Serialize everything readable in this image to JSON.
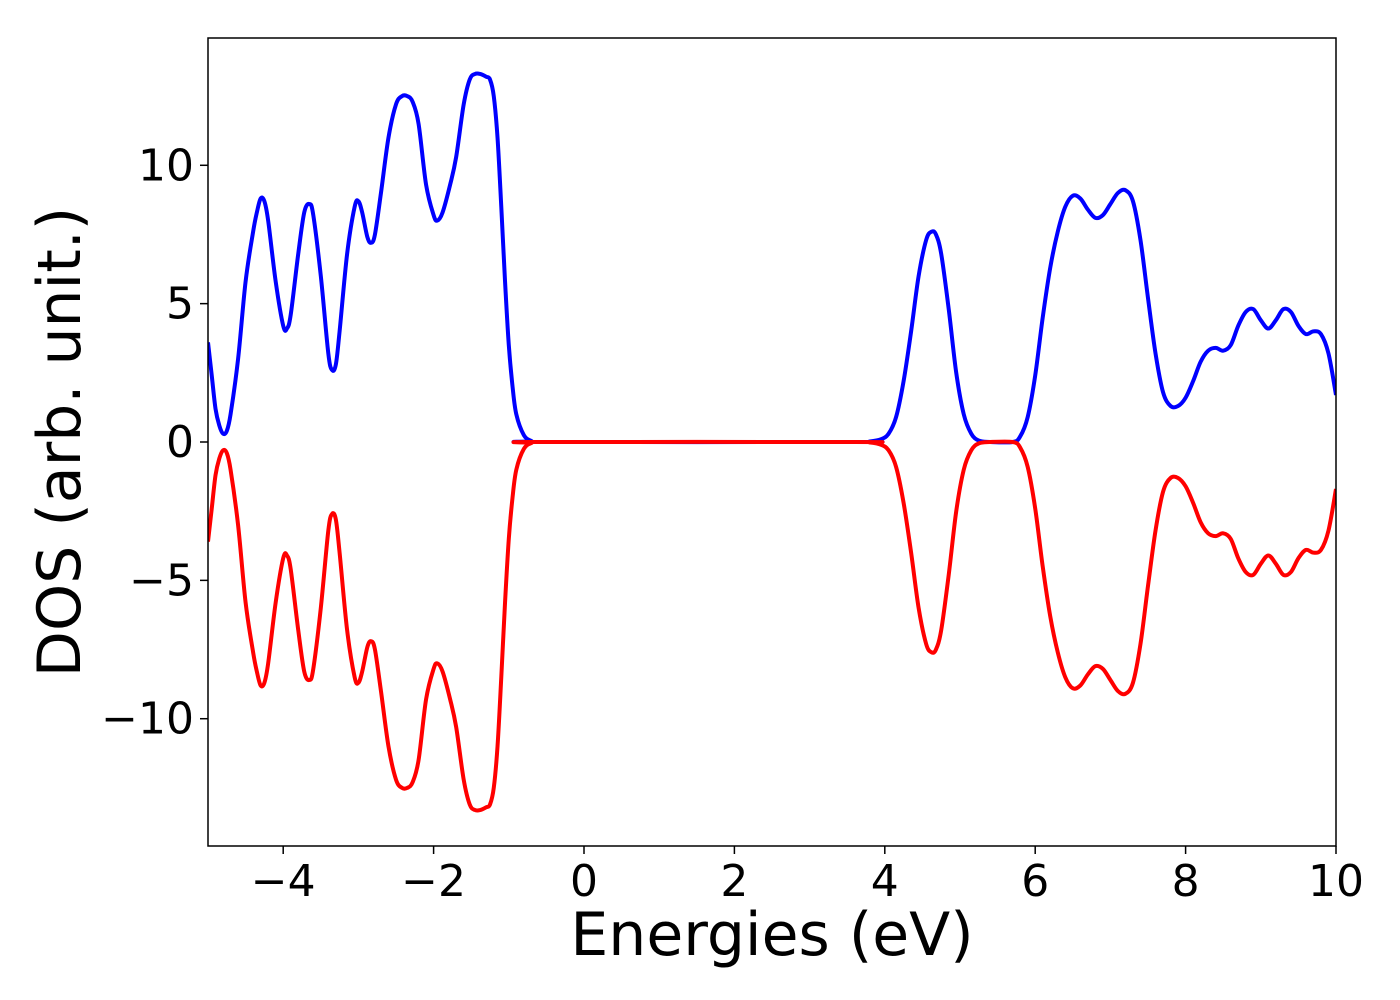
{
  "chart_data": {
    "type": "line",
    "title": "",
    "xlabel": "Energies (eV)",
    "ylabel": "DOS (arb. unit.)",
    "xlim": [
      -5,
      10
    ],
    "ylim": [
      -14.6,
      14.6
    ],
    "xticks": [
      -4,
      -2,
      0,
      2,
      4,
      6,
      8,
      10
    ],
    "xtick_labels": [
      "−4",
      "−2",
      "0",
      "2",
      "4",
      "6",
      "8",
      "10"
    ],
    "yticks": [
      -10,
      -5,
      0,
      5,
      10
    ],
    "ytick_labels": [
      "−10",
      "−5",
      "0",
      "5",
      "10"
    ],
    "grid": false,
    "legend": "none",
    "series": [
      {
        "color": "#0000ff",
        "points": [
          [
            -5.0,
            3.6
          ],
          [
            -4.95,
            2.4
          ],
          [
            -4.9,
            1.2
          ],
          [
            -4.85,
            0.6
          ],
          [
            -4.8,
            0.3
          ],
          [
            -4.75,
            0.4
          ],
          [
            -4.7,
            1.0
          ],
          [
            -4.6,
            3.0
          ],
          [
            -4.5,
            5.8
          ],
          [
            -4.4,
            7.6
          ],
          [
            -4.35,
            8.3
          ],
          [
            -4.3,
            8.8
          ],
          [
            -4.25,
            8.7
          ],
          [
            -4.2,
            8.0
          ],
          [
            -4.1,
            5.8
          ],
          [
            -4.0,
            4.2
          ],
          [
            -3.95,
            4.1
          ],
          [
            -3.9,
            4.6
          ],
          [
            -3.8,
            6.8
          ],
          [
            -3.72,
            8.3
          ],
          [
            -3.65,
            8.6
          ],
          [
            -3.6,
            8.2
          ],
          [
            -3.5,
            6.0
          ],
          [
            -3.4,
            3.2
          ],
          [
            -3.35,
            2.6
          ],
          [
            -3.3,
            2.8
          ],
          [
            -3.25,
            4.0
          ],
          [
            -3.15,
            6.8
          ],
          [
            -3.05,
            8.5
          ],
          [
            -3.0,
            8.7
          ],
          [
            -2.95,
            8.3
          ],
          [
            -2.88,
            7.4
          ],
          [
            -2.83,
            7.2
          ],
          [
            -2.78,
            7.5
          ],
          [
            -2.7,
            9.0
          ],
          [
            -2.6,
            11.0
          ],
          [
            -2.5,
            12.2
          ],
          [
            -2.42,
            12.5
          ],
          [
            -2.35,
            12.5
          ],
          [
            -2.28,
            12.3
          ],
          [
            -2.2,
            11.5
          ],
          [
            -2.1,
            9.3
          ],
          [
            -2.0,
            8.2
          ],
          [
            -1.95,
            8.0
          ],
          [
            -1.88,
            8.3
          ],
          [
            -1.78,
            9.3
          ],
          [
            -1.7,
            10.3
          ],
          [
            -1.6,
            12.2
          ],
          [
            -1.52,
            13.1
          ],
          [
            -1.45,
            13.3
          ],
          [
            -1.38,
            13.3
          ],
          [
            -1.3,
            13.2
          ],
          [
            -1.25,
            13.1
          ],
          [
            -1.2,
            12.5
          ],
          [
            -1.15,
            11.0
          ],
          [
            -1.1,
            8.5
          ],
          [
            -1.05,
            5.8
          ],
          [
            -1.0,
            3.5
          ],
          [
            -0.95,
            2.0
          ],
          [
            -0.9,
            1.0
          ],
          [
            -0.8,
            0.25
          ],
          [
            -0.7,
            0.04
          ],
          [
            -0.6,
            0.0
          ],
          [
            3.6,
            0.0
          ],
          [
            3.8,
            0.02
          ],
          [
            3.95,
            0.1
          ],
          [
            4.05,
            0.3
          ],
          [
            4.15,
            0.9
          ],
          [
            4.25,
            2.2
          ],
          [
            4.35,
            4.0
          ],
          [
            4.45,
            6.0
          ],
          [
            4.55,
            7.3
          ],
          [
            4.62,
            7.6
          ],
          [
            4.68,
            7.5
          ],
          [
            4.75,
            6.8
          ],
          [
            4.85,
            4.8
          ],
          [
            4.95,
            2.5
          ],
          [
            5.05,
            1.0
          ],
          [
            5.15,
            0.3
          ],
          [
            5.25,
            0.05
          ],
          [
            5.4,
            0.0
          ],
          [
            5.7,
            0.0
          ],
          [
            5.8,
            0.2
          ],
          [
            5.9,
            0.9
          ],
          [
            6.0,
            2.4
          ],
          [
            6.1,
            4.5
          ],
          [
            6.2,
            6.3
          ],
          [
            6.3,
            7.6
          ],
          [
            6.4,
            8.5
          ],
          [
            6.5,
            8.9
          ],
          [
            6.6,
            8.8
          ],
          [
            6.7,
            8.4
          ],
          [
            6.8,
            8.1
          ],
          [
            6.9,
            8.2
          ],
          [
            7.0,
            8.6
          ],
          [
            7.1,
            9.0
          ],
          [
            7.2,
            9.1
          ],
          [
            7.3,
            8.7
          ],
          [
            7.4,
            7.3
          ],
          [
            7.5,
            5.2
          ],
          [
            7.6,
            3.2
          ],
          [
            7.7,
            1.8
          ],
          [
            7.8,
            1.3
          ],
          [
            7.9,
            1.3
          ],
          [
            8.0,
            1.6
          ],
          [
            8.1,
            2.2
          ],
          [
            8.2,
            2.9
          ],
          [
            8.3,
            3.3
          ],
          [
            8.4,
            3.4
          ],
          [
            8.5,
            3.3
          ],
          [
            8.6,
            3.5
          ],
          [
            8.7,
            4.2
          ],
          [
            8.8,
            4.7
          ],
          [
            8.9,
            4.8
          ],
          [
            9.0,
            4.4
          ],
          [
            9.1,
            4.1
          ],
          [
            9.2,
            4.4
          ],
          [
            9.3,
            4.8
          ],
          [
            9.4,
            4.7
          ],
          [
            9.5,
            4.2
          ],
          [
            9.6,
            3.9
          ],
          [
            9.7,
            4.0
          ],
          [
            9.8,
            3.9
          ],
          [
            9.9,
            3.2
          ],
          [
            10.0,
            1.7
          ]
        ]
      },
      {
        "color": "#ff0000",
        "points": [
          [
            -5.0,
            -3.6
          ],
          [
            -4.95,
            -2.4
          ],
          [
            -4.9,
            -1.2
          ],
          [
            -4.85,
            -0.6
          ],
          [
            -4.8,
            -0.3
          ],
          [
            -4.75,
            -0.4
          ],
          [
            -4.7,
            -1.0
          ],
          [
            -4.6,
            -3.0
          ],
          [
            -4.5,
            -5.8
          ],
          [
            -4.4,
            -7.6
          ],
          [
            -4.35,
            -8.3
          ],
          [
            -4.3,
            -8.8
          ],
          [
            -4.25,
            -8.7
          ],
          [
            -4.2,
            -8.0
          ],
          [
            -4.1,
            -5.8
          ],
          [
            -4.0,
            -4.2
          ],
          [
            -3.95,
            -4.1
          ],
          [
            -3.9,
            -4.6
          ],
          [
            -3.8,
            -6.8
          ],
          [
            -3.72,
            -8.3
          ],
          [
            -3.65,
            -8.6
          ],
          [
            -3.6,
            -8.2
          ],
          [
            -3.5,
            -6.0
          ],
          [
            -3.4,
            -3.2
          ],
          [
            -3.35,
            -2.6
          ],
          [
            -3.3,
            -2.8
          ],
          [
            -3.25,
            -4.0
          ],
          [
            -3.15,
            -6.8
          ],
          [
            -3.05,
            -8.5
          ],
          [
            -3.0,
            -8.7
          ],
          [
            -2.95,
            -8.3
          ],
          [
            -2.88,
            -7.4
          ],
          [
            -2.83,
            -7.2
          ],
          [
            -2.78,
            -7.5
          ],
          [
            -2.7,
            -9.0
          ],
          [
            -2.6,
            -11.0
          ],
          [
            -2.5,
            -12.2
          ],
          [
            -2.42,
            -12.5
          ],
          [
            -2.35,
            -12.5
          ],
          [
            -2.28,
            -12.3
          ],
          [
            -2.2,
            -11.5
          ],
          [
            -2.1,
            -9.3
          ],
          [
            -2.0,
            -8.2
          ],
          [
            -1.95,
            -8.0
          ],
          [
            -1.88,
            -8.3
          ],
          [
            -1.78,
            -9.3
          ],
          [
            -1.7,
            -10.3
          ],
          [
            -1.6,
            -12.2
          ],
          [
            -1.52,
            -13.1
          ],
          [
            -1.45,
            -13.3
          ],
          [
            -1.38,
            -13.3
          ],
          [
            -1.3,
            -13.2
          ],
          [
            -1.25,
            -13.1
          ],
          [
            -1.2,
            -12.5
          ],
          [
            -1.15,
            -11.0
          ],
          [
            -1.1,
            -8.5
          ],
          [
            -1.05,
            -5.8
          ],
          [
            -1.0,
            -3.5
          ],
          [
            -0.95,
            -2.0
          ],
          [
            -0.9,
            -1.0
          ],
          [
            -0.8,
            -0.25
          ],
          [
            -0.7,
            -0.04
          ],
          [
            -0.6,
            0.0
          ],
          [
            3.6,
            0.0
          ],
          [
            3.8,
            -0.02
          ],
          [
            3.95,
            -0.1
          ],
          [
            4.05,
            -0.3
          ],
          [
            4.15,
            -0.9
          ],
          [
            4.25,
            -2.2
          ],
          [
            4.35,
            -4.0
          ],
          [
            4.45,
            -6.0
          ],
          [
            4.55,
            -7.3
          ],
          [
            4.62,
            -7.6
          ],
          [
            4.68,
            -7.5
          ],
          [
            4.75,
            -6.8
          ],
          [
            4.85,
            -4.8
          ],
          [
            4.95,
            -2.5
          ],
          [
            5.05,
            -1.0
          ],
          [
            5.15,
            -0.3
          ],
          [
            5.25,
            -0.05
          ],
          [
            5.4,
            0.0
          ],
          [
            5.7,
            0.0
          ],
          [
            5.8,
            -0.2
          ],
          [
            5.9,
            -0.9
          ],
          [
            6.0,
            -2.4
          ],
          [
            6.1,
            -4.5
          ],
          [
            6.2,
            -6.3
          ],
          [
            6.3,
            -7.6
          ],
          [
            6.4,
            -8.5
          ],
          [
            6.5,
            -8.9
          ],
          [
            6.6,
            -8.8
          ],
          [
            6.7,
            -8.4
          ],
          [
            6.8,
            -8.1
          ],
          [
            6.9,
            -8.2
          ],
          [
            7.0,
            -8.6
          ],
          [
            7.1,
            -9.0
          ],
          [
            7.2,
            -9.1
          ],
          [
            7.3,
            -8.7
          ],
          [
            7.4,
            -7.3
          ],
          [
            7.5,
            -5.2
          ],
          [
            7.6,
            -3.2
          ],
          [
            7.7,
            -1.8
          ],
          [
            7.8,
            -1.3
          ],
          [
            7.9,
            -1.3
          ],
          [
            8.0,
            -1.6
          ],
          [
            8.1,
            -2.2
          ],
          [
            8.2,
            -2.9
          ],
          [
            8.3,
            -3.3
          ],
          [
            8.4,
            -3.4
          ],
          [
            8.5,
            -3.3
          ],
          [
            8.6,
            -3.5
          ],
          [
            8.7,
            -4.2
          ],
          [
            8.8,
            -4.7
          ],
          [
            8.9,
            -4.8
          ],
          [
            9.0,
            -4.4
          ],
          [
            9.1,
            -4.1
          ],
          [
            9.2,
            -4.4
          ],
          [
            9.3,
            -4.8
          ],
          [
            9.4,
            -4.7
          ],
          [
            9.5,
            -4.2
          ],
          [
            9.6,
            -3.9
          ],
          [
            9.7,
            -4.0
          ],
          [
            9.8,
            -3.9
          ],
          [
            9.9,
            -3.2
          ],
          [
            10.0,
            -1.7
          ]
        ]
      }
    ]
  }
}
